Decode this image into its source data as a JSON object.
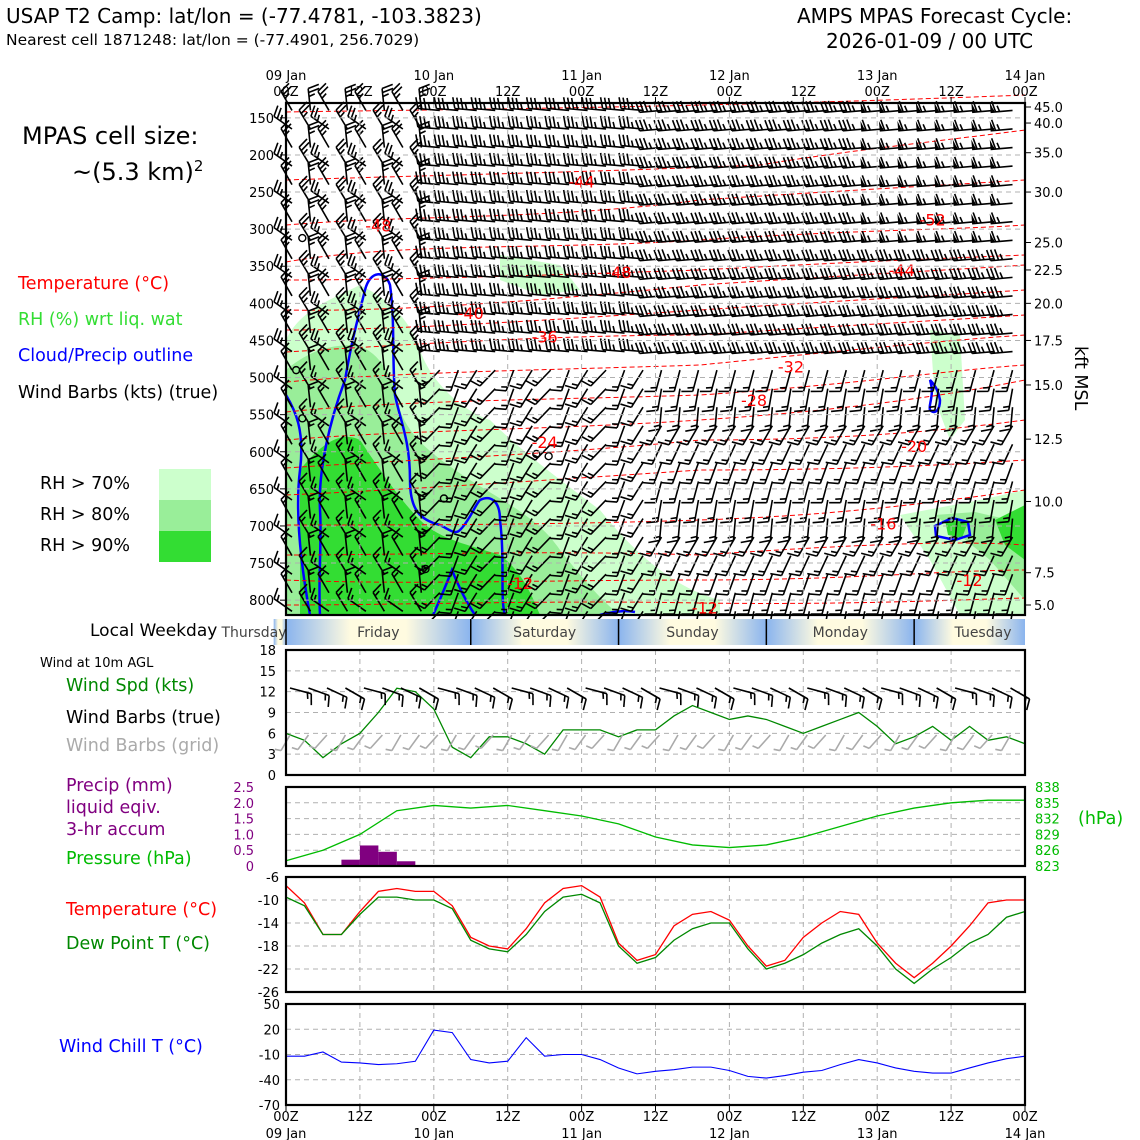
{
  "header": {
    "title": "USAP T2 Camp: lat/lon = (-77.4781, -103.3823)",
    "subtitle": "Nearest cell 1871248: lat/lon = (-77.4901, 256.7029)",
    "forecast_line1": "AMPS MPAS Forecast Cycle:",
    "forecast_line2": "2026-01-09 / 00 UTC"
  },
  "sidebar": {
    "cell_size_label": "MPAS cell size:",
    "cell_size_value": "~(5.3 km)",
    "cell_size_exp": "2",
    "temperature": "Temperature (°C)",
    "rh": "RH (%) wrt liq. wat",
    "cloud": "Cloud/Precip outline",
    "barbs": "Wind Barbs (kts) (true)",
    "rh70": "RH > 70%",
    "rh80": "RH > 80%",
    "rh90": "RH > 90%",
    "local_weekday": "Local Weekday",
    "wind_10m": "Wind at 10m AGL",
    "wind_spd": "Wind Spd (kts)",
    "wind_barbs_true": "Wind Barbs (true)",
    "wind_barbs_grid": "Wind Barbs (grid)",
    "precip1": "Precip (mm)",
    "precip2": "liquid eqiv.",
    "precip3": "3-hr accum",
    "pressure": "Pressure (hPa)",
    "pressure_unit": "(hPa)",
    "temp2": "Temperature (°C)",
    "dew": "Dew Point T (°C)",
    "windchill": "Wind Chill T (°C)",
    "kft": "kft MSL"
  },
  "colors": {
    "temp": "#ff0000",
    "rh_label": "#33dd33",
    "cloud": "#0000ff",
    "rh70": "#ccffcc",
    "rh80": "#99ee99",
    "rh90": "#33dd33",
    "wind_spd": "#008800",
    "grid_barbs": "#aaaaaa",
    "precip": "#800080",
    "pressure": "#00bb00",
    "dew": "#008800",
    "windchill": "#0000ff"
  },
  "chart_data": [
    {
      "type": "heatmap",
      "title": "Time-height cross section",
      "x_top_ticks": [
        "09 Jan\n00Z",
        "12Z",
        "10 Jan\n00Z",
        "12Z",
        "11 Jan\n00Z",
        "12Z",
        "12 Jan\n00Z",
        "12Z",
        "13 Jan\n00Z",
        "12Z",
        "14 Jan\n00Z"
      ],
      "hours_range": [
        0,
        120
      ],
      "pressure_ticks": [
        150,
        200,
        250,
        300,
        350,
        400,
        450,
        500,
        550,
        600,
        650,
        700,
        750,
        800
      ],
      "pressure_range": [
        130,
        820
      ],
      "kft_ticks": [
        "45.0",
        "40.0",
        "35.0",
        "30.0",
        "25.0",
        "22.5",
        "20.0",
        "17.5",
        "15.0",
        "12.5",
        "10.0",
        "7.5",
        "5.0"
      ],
      "kft_pressure": [
        130,
        157,
        197,
        250,
        318,
        355,
        400,
        450,
        510,
        583,
        667,
        763,
        855
      ],
      "temp_labels": [
        {
          "text": "-44",
          "h": 48,
          "p": 236
        },
        {
          "text": "-48",
          "h": 15,
          "p": 295
        },
        {
          "text": "-48",
          "h": 54,
          "p": 358
        },
        {
          "text": "-52",
          "h": 105,
          "p": 287
        },
        {
          "text": "-44",
          "h": 100,
          "p": 355
        },
        {
          "text": "-40",
          "h": 30,
          "p": 413
        },
        {
          "text": "-36",
          "h": 42,
          "p": 445
        },
        {
          "text": "-32",
          "h": 82,
          "p": 485
        },
        {
          "text": "-28",
          "h": 76,
          "p": 530
        },
        {
          "text": "-24",
          "h": 42,
          "p": 587
        },
        {
          "text": "-20",
          "h": 102,
          "p": 592
        },
        {
          "text": "-16",
          "h": 97,
          "p": 697
        },
        {
          "text": "-12",
          "h": 38,
          "p": 777
        },
        {
          "text": "-12",
          "h": 68,
          "p": 810
        },
        {
          "text": "-16",
          "h": 84,
          "p": 825
        },
        {
          "text": "-12",
          "h": 111,
          "p": 773
        }
      ]
    },
    {
      "type": "line",
      "title": "Wind Spd (kts)",
      "hours": [
        0,
        3,
        6,
        9,
        12,
        15,
        18,
        21,
        24,
        27,
        30,
        33,
        36,
        39,
        42,
        45,
        48,
        51,
        54,
        57,
        60,
        63,
        66,
        69,
        72,
        75,
        78,
        81,
        84,
        87,
        90,
        93,
        96,
        99,
        102,
        105,
        108,
        111,
        114,
        117,
        120
      ],
      "values": [
        6,
        5,
        2.5,
        4.5,
        6,
        9,
        12.5,
        12,
        9.5,
        4,
        2.5,
        5.5,
        5.5,
        4.5,
        3,
        6.5,
        6.5,
        6.5,
        5.5,
        6.5,
        6.5,
        8.5,
        10,
        9,
        8,
        8.5,
        8,
        7,
        6,
        7,
        8,
        9,
        7,
        4.5,
        5.5,
        7,
        5,
        7,
        5,
        5.5,
        4.5
      ],
      "ylim": [
        0,
        18
      ],
      "yticks": [
        0,
        3,
        6,
        9,
        12,
        15,
        18
      ]
    },
    {
      "type": "bar",
      "title": "Precip (mm)",
      "bars": [
        {
          "h0": 9,
          "h1": 12,
          "value": 0.2
        },
        {
          "h0": 12,
          "h1": 15,
          "value": 0.65
        },
        {
          "h0": 15,
          "h1": 18,
          "value": 0.45
        },
        {
          "h0": 18,
          "h1": 21,
          "value": 0.15
        }
      ],
      "ylim": [
        0,
        2.5
      ],
      "yticks": [
        "0",
        "0.5",
        "1.0",
        "1.5",
        "2.0",
        "2.5"
      ]
    },
    {
      "type": "line",
      "title": "Pressure (hPa)",
      "hours": [
        0,
        6,
        12,
        18,
        24,
        30,
        36,
        42,
        48,
        54,
        60,
        66,
        72,
        78,
        84,
        90,
        96,
        102,
        108,
        114,
        120
      ],
      "values": [
        824,
        826,
        829,
        833.5,
        834.5,
        834,
        834.5,
        833.5,
        832.5,
        831,
        828.5,
        827,
        826.5,
        827,
        828.5,
        830.5,
        832.5,
        834,
        835,
        835.5,
        835.5
      ],
      "ylim": [
        823,
        838
      ],
      "yticks": [
        "823",
        "826",
        "829",
        "832",
        "835",
        "838"
      ]
    },
    {
      "type": "line",
      "title": "Temperature / Dew Point (°C)",
      "hours": [
        0,
        3,
        6,
        9,
        12,
        15,
        18,
        21,
        24,
        27,
        30,
        33,
        36,
        39,
        42,
        45,
        48,
        51,
        54,
        57,
        60,
        63,
        66,
        69,
        72,
        75,
        78,
        81,
        84,
        87,
        90,
        93,
        96,
        99,
        102,
        105,
        108,
        111,
        114,
        117,
        120
      ],
      "series": [
        {
          "name": "Temperature",
          "values": [
            -7.5,
            -10.5,
            -16,
            -16,
            -12,
            -8.5,
            -8,
            -8.5,
            -8.5,
            -11,
            -16.5,
            -18,
            -18.5,
            -15,
            -10.5,
            -8,
            -7.5,
            -9.5,
            -17.5,
            -20.5,
            -19.5,
            -14.5,
            -12.5,
            -12,
            -13.5,
            -18,
            -21.5,
            -20.5,
            -16.5,
            -14,
            -12,
            -12.5,
            -17.5,
            -21,
            -23.5,
            -21,
            -18,
            -14.5,
            -10.5,
            -10,
            -10
          ]
        },
        {
          "name": "Dew Point",
          "values": [
            -9.5,
            -11,
            -16,
            -16,
            -12.5,
            -9.5,
            -9.5,
            -10,
            -10,
            -11.5,
            -17,
            -18.5,
            -19,
            -16,
            -12,
            -9.5,
            -9,
            -10.5,
            -18,
            -21,
            -20,
            -17,
            -15,
            -14,
            -14,
            -18.5,
            -22,
            -21,
            -19.5,
            -17.5,
            -16,
            -15,
            -18,
            -22,
            -24.5,
            -22,
            -20,
            -17.5,
            -16,
            -13,
            -12
          ]
        }
      ],
      "ylim": [
        -26,
        -6
      ],
      "yticks": [
        "-6",
        "-10",
        "-14",
        "-18",
        "-22",
        "-26"
      ]
    },
    {
      "type": "line",
      "title": "Wind Chill T (°C)",
      "hours": [
        0,
        3,
        6,
        9,
        12,
        15,
        18,
        21,
        24,
        27,
        30,
        33,
        36,
        39,
        42,
        45,
        48,
        51,
        54,
        57,
        60,
        63,
        66,
        69,
        72,
        75,
        78,
        81,
        84,
        87,
        90,
        93,
        96,
        99,
        102,
        105,
        108,
        111,
        114,
        117,
        120
      ],
      "values": [
        -12,
        -12,
        -7,
        -19,
        -20,
        -22,
        -21,
        -18,
        19,
        16,
        -16,
        -20,
        -18,
        10,
        -12,
        -10,
        -10,
        -16,
        -26,
        -33,
        -30,
        -28,
        -25,
        -25,
        -29,
        -36,
        -38,
        -35,
        -31,
        -29,
        -22,
        -16,
        -20,
        -26,
        -30,
        -32,
        -32,
        -26,
        -20,
        -15,
        -12
      ],
      "ylim": [
        -70,
        50
      ],
      "yticks": [
        "50",
        "20",
        "-10",
        "-40",
        "-70"
      ]
    },
    {
      "type": "table",
      "title": "Local Weekday",
      "days": [
        {
          "name": "Thursday",
          "h0": -2,
          "h1": 0
        },
        {
          "name": "Friday",
          "h0": 0,
          "h1": 30
        },
        {
          "name": "Saturday",
          "h0": 30,
          "h1": 54
        },
        {
          "name": "Sunday",
          "h0": 54,
          "h1": 78
        },
        {
          "name": "Monday",
          "h0": 78,
          "h1": 102
        },
        {
          "name": "Tuesday",
          "h0": 102,
          "h1": 120
        }
      ]
    }
  ],
  "bottom_ticks": [
    "00Z",
    "12Z",
    "00Z",
    "12Z",
    "00Z",
    "12Z",
    "00Z",
    "12Z",
    "00Z",
    "12Z",
    "00Z"
  ],
  "bottom_dates": [
    "09 Jan",
    "10 Jan",
    "11 Jan",
    "12 Jan",
    "13 Jan",
    "14 Jan"
  ]
}
